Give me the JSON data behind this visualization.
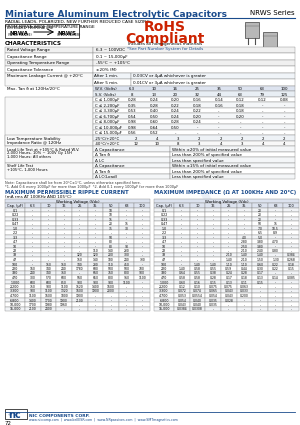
{
  "title": "Miniature Aluminum Electrolytic Capacitors",
  "series": "NRWS Series",
  "subtitle1": "RADIAL LEADS, POLARIZED, NEW FURTHER REDUCED CASE SIZING,",
  "subtitle2": "FROM NRWA WIDE TEMPERATURE RANGE",
  "rohs_line1": "RoHS",
  "rohs_line2": "Compliant",
  "rohs_line3": "Includes all homogeneous materials",
  "rohs_line4": "*See Part Number System for Details",
  "ext_temp_label": "EXTENDED TEMPERATURE",
  "nrwa_label": "NRWA",
  "nrws_label": "NRWS",
  "nrwa_sub": "(WIDE RANGE)",
  "nrws_sub": "(EVEN WIDER)",
  "char_title": "CHARACTERISTICS",
  "char_rows": [
    [
      "Rated Voltage Range",
      "6.3 ~ 100VDC"
    ],
    [
      "Capacitance Range",
      "0.1 ~ 15,000μF"
    ],
    [
      "Operating Temperature Range",
      "-55°C ~ +105°C"
    ],
    [
      "Capacitance Tolerance",
      "±20% (M)"
    ]
  ],
  "leakage_title": "Maximum Leakage Current @ +20°C",
  "leakage_rows": [
    [
      "After 1 min.",
      "0.03CV or 4μA whichever is greater"
    ],
    [
      "After 5 min.",
      "0.01CV or 3μA whichever is greater"
    ]
  ],
  "tand_title": "Max. Tan δ at 120Hz/20°C",
  "tand_headers": [
    "W.V. (Volts)",
    "6.3",
    "10",
    "16",
    "25",
    "35",
    "50",
    "63",
    "100"
  ],
  "tand_row1": [
    "S.V. (Volts)",
    "8",
    "13",
    "20",
    "32",
    "44",
    "63",
    "79",
    "125"
  ],
  "tand_rows": [
    [
      "C ≤ 1,000μF",
      "0.28",
      "0.24",
      "0.20",
      "0.16",
      "0.14",
      "0.12",
      "0.12",
      "0.08"
    ],
    [
      "C ≤ 2,200μF",
      "0.35",
      "0.28",
      "0.22",
      "0.18",
      "0.16",
      "0.18",
      "-",
      "-"
    ],
    [
      "C ≤ 3,300μF",
      "0.53",
      "0.40",
      "0.24",
      "0.22",
      "-",
      "0.18",
      "-",
      "-"
    ],
    [
      "C ≤ 6,700μF",
      "0.54",
      "0.50",
      "0.24",
      "0.20",
      "-",
      "0.20",
      "-",
      "-"
    ],
    [
      "C ≤ 8,000μF",
      "0.98",
      "0.60",
      "0.28",
      "0.24",
      "-",
      "-",
      "-",
      "-"
    ],
    [
      "C ≤ 10,000μF",
      "0.98",
      "0.64",
      "0.50",
      "-",
      "-",
      "-",
      "-",
      "-"
    ],
    [
      "C ≤ 15,000μF",
      "0.56",
      "0.52",
      "-",
      "-",
      "-",
      "-",
      "-",
      "-"
    ]
  ],
  "lowtemp_title": "Low Temperature Stability\nImpedance Ratio @ 120Hz",
  "lowtemp_rows": [
    [
      "-25°C/+20°C",
      "2",
      "4",
      "3",
      "2",
      "2",
      "2",
      "2",
      "2"
    ],
    [
      "-40°C/+20°C",
      "12",
      "10",
      "8",
      "3",
      "4",
      "3",
      "4",
      "4"
    ]
  ],
  "lifetest_title": "Load Life Test at +105°C & Rated W.V.\n2,000 Hours, 10% ~ 100V Gy 15H\n1,000 Hours: All others",
  "lifetest_rows": [
    [
      "Δ Capacitance",
      "Within ±20% of initial measured value"
    ],
    [
      "Δ Tan δ",
      "Less than 200% of specified value"
    ],
    [
      "Δ LC",
      "Less than specified value"
    ]
  ],
  "shelflife_title": "Shelf Life Test\n+105°C, 1,000 Hours",
  "shelflife_rows": [
    [
      "Δ Capacitance",
      "Within ±15% of initial measured value"
    ],
    [
      "Δ Tan δ",
      "Less than 200% of specified value"
    ],
    [
      "Δ LC(Load)",
      "Less than specified value"
    ]
  ],
  "note1": "Note: Capacitance shall be from 20°C±1°C, unless otherwise specified here.",
  "note2": "*1. Add 0.6 every 1000μF for more than 1000μF  *2. Add 0.1 every 1000μF for more than 1000μF",
  "ripple_title": "MAXIMUM PERMISSIBLE RIPPLE CURRENT",
  "ripple_subtitle": "(mA rms AT 100KHz AND 105°C)",
  "impedance_title": "MAXIMUM IMPEDANCE (Ω AT 100KHz AND 20°C)",
  "table_headers_wv": [
    "6.3",
    "10",
    "16",
    "25",
    "35",
    "50",
    "63",
    "100"
  ],
  "cap_col_label": "Cap. (μF)",
  "ripple_data": [
    [
      "0.1",
      "-",
      "-",
      "-",
      "-",
      "-",
      "10",
      "-",
      "-"
    ],
    [
      "0.22",
      "-",
      "-",
      "-",
      "-",
      "-",
      "10",
      "-",
      "-"
    ],
    [
      "0.33",
      "-",
      "-",
      "-",
      "-",
      "-",
      "15",
      "-",
      "-"
    ],
    [
      "0.47",
      "-",
      "-",
      "-",
      "-",
      "-",
      "20",
      "15",
      "-"
    ],
    [
      "1.0",
      "-",
      "-",
      "-",
      "-",
      "-",
      "35",
      "30",
      "-"
    ],
    [
      "2.2",
      "-",
      "-",
      "-",
      "-",
      "-",
      "-",
      "-",
      "-"
    ],
    [
      "3.3",
      "-",
      "-",
      "-",
      "-",
      "-",
      "50",
      "-",
      "-"
    ],
    [
      "4.7",
      "-",
      "-",
      "-",
      "-",
      "-",
      "80",
      "-",
      "-"
    ],
    [
      "10",
      "-",
      "-",
      "-",
      "-",
      "-",
      "80",
      "90",
      "-"
    ],
    [
      "22",
      "-",
      "-",
      "-",
      "-",
      "110",
      "140",
      "230",
      "-"
    ],
    [
      "33",
      "-",
      "-",
      "-",
      "120",
      "120",
      "200",
      "300",
      "-"
    ],
    [
      "47",
      "-",
      "-",
      "-",
      "150",
      "140",
      "180",
      "240",
      "330"
    ],
    [
      "100",
      "-",
      "150",
      "150",
      "340",
      "280",
      "310",
      "450",
      "-"
    ],
    [
      "220",
      "160",
      "340",
      "240",
      "1780",
      "680",
      "500",
      "500",
      "700"
    ],
    [
      "330",
      "240",
      "340",
      "360",
      "-",
      "660",
      "760",
      "800",
      "900"
    ],
    [
      "470",
      "300",
      "570",
      "600",
      "560",
      "650",
      "800",
      "960",
      "1100"
    ],
    [
      "1,000",
      "600",
      "600",
      "850",
      "900",
      "900",
      "900",
      "1100",
      "-"
    ],
    [
      "2,200",
      "750",
      "900",
      "1100",
      "1520",
      "1400",
      "1600",
      "-",
      "-"
    ],
    [
      "3,300",
      "900",
      "1100",
      "1320",
      "1600",
      "1900",
      "2000",
      "-",
      "-"
    ],
    [
      "4,700",
      "1100",
      "1600",
      "1800",
      "1900",
      "-",
      "-",
      "-",
      "-"
    ],
    [
      "6,800",
      "1400",
      "1700",
      "1900",
      "2100",
      "-",
      "-",
      "-",
      "-"
    ],
    [
      "10,000",
      "1700",
      "1980",
      "1960",
      "-",
      "-",
      "-",
      "-",
      "-"
    ],
    [
      "15,000",
      "2100",
      "2400",
      "-",
      "-",
      "-",
      "-",
      "-",
      "-"
    ]
  ],
  "impedance_data": [
    [
      "0.1",
      "-",
      "-",
      "-",
      "-",
      "-",
      "20",
      "-",
      "-"
    ],
    [
      "0.22",
      "-",
      "-",
      "-",
      "-",
      "-",
      "20",
      "-",
      "-"
    ],
    [
      "0.33",
      "-",
      "-",
      "-",
      "-",
      "-",
      "20",
      "-",
      "-"
    ],
    [
      "0.47",
      "-",
      "-",
      "-",
      "-",
      "-",
      "50",
      "15",
      "-"
    ],
    [
      "1.0",
      "-",
      "-",
      "-",
      "-",
      "-",
      "7.0",
      "10.5",
      "-"
    ],
    [
      "2.2",
      "-",
      "-",
      "-",
      "-",
      "-",
      "6.5",
      "8.9",
      "-"
    ],
    [
      "3.3",
      "-",
      "-",
      "-",
      "-",
      "4.0",
      "5.0",
      "-",
      "-"
    ],
    [
      "4.7",
      "-",
      "-",
      "-",
      "-",
      "2.80",
      "3.80",
      "4.70",
      "-"
    ],
    [
      "10",
      "-",
      "-",
      "-",
      "-",
      "2.50",
      "3.80",
      "-",
      "-"
    ],
    [
      "22",
      "-",
      "-",
      "-",
      "-",
      "2.10",
      "2.40",
      "0.80",
      "-"
    ],
    [
      "33",
      "-",
      "-",
      "-",
      "2.10",
      "1.40",
      "1.40",
      "-",
      "0.384"
    ],
    [
      "47",
      "-",
      "-",
      "-",
      "1.40",
      "2.10",
      "1.50",
      "1.30",
      "0.268"
    ],
    [
      "100",
      "-",
      "1.40",
      "1.40",
      "1.10",
      "1.10",
      "0.60",
      "0.22",
      "0.18"
    ],
    [
      "220",
      "1.40",
      "0.58",
      "0.55",
      "0.59",
      "0.44",
      "0.30",
      "0.22",
      "0.15"
    ],
    [
      "330",
      "0.64",
      "0.55",
      "0.38",
      "0.24",
      "0.28",
      "0.17",
      "-",
      "-"
    ],
    [
      "470",
      "0.58",
      "0.58",
      "0.28",
      "0.17",
      "0.18",
      "0.13",
      "0.14",
      "0.085"
    ],
    [
      "1,000",
      "0.60",
      "0.16",
      "0.15",
      "0.13",
      "0.11",
      "0.15",
      "-",
      "-"
    ],
    [
      "2,200",
      "0.12",
      "0.10",
      "0.075",
      "0.075",
      "0.063",
      "-",
      "-",
      "-"
    ],
    [
      "3,300",
      "0.072",
      "0.074",
      "0.065",
      "0.043",
      "0.033",
      "-",
      "-",
      "-"
    ],
    [
      "4,700",
      "0.053",
      "0.0554",
      "0.054",
      "0.043",
      "0.200",
      "-",
      "-",
      "-"
    ],
    [
      "6,800",
      "0.054",
      "0.040",
      "0.035",
      "0.028",
      "-",
      "-",
      "-",
      "-"
    ],
    [
      "10,000",
      "0.043",
      "0.040",
      "0.035",
      "-",
      "-",
      "-",
      "-",
      "-"
    ],
    [
      "15,000",
      "0.0384",
      "0.0308",
      "-",
      "-",
      "-",
      "-",
      "-",
      "-"
    ]
  ],
  "footer_page": "72",
  "footer_url1": "www.niccomp.com",
  "footer_url2": "www.bellESR.com",
  "footer_url3": "www.NRpassives.com",
  "footer_url4": "www.SMTmagnetics.com",
  "bg_color": "#ffffff",
  "header_blue": "#1a4b8c",
  "rohs_red": "#cc2200",
  "table_border": "#888888",
  "table_header_bg": "#dde3ef"
}
